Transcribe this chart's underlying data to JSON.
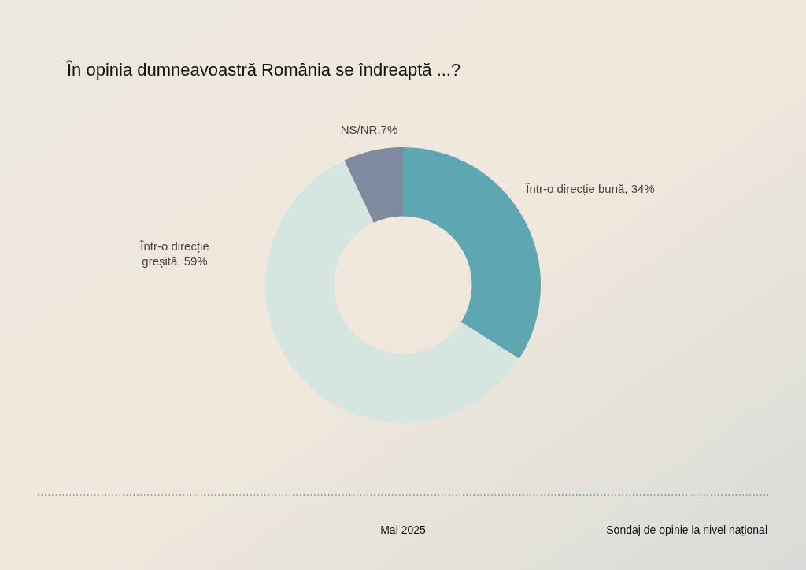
{
  "chart_data": {
    "type": "donut",
    "title": "În opinia dumneavoastră România se îndreaptă ...?",
    "categories": [
      "Într-o direcție bună",
      "Într-o direcție greșită",
      "NS/NR"
    ],
    "values": [
      34,
      59,
      7
    ],
    "colors": [
      "#5fa6b3",
      "#d5e5e0",
      "#7f8a9e"
    ],
    "value_labels": [
      "34%",
      "59%",
      "7%"
    ],
    "annotations": [
      "Mai 2025",
      "Sondaj de opinie la nivel național"
    ]
  }
}
